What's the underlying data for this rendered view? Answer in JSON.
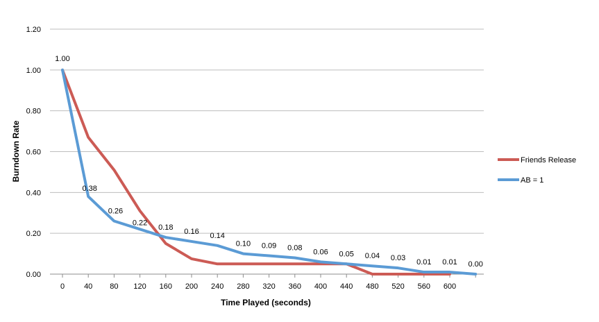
{
  "chart_data": {
    "type": "line",
    "title": "",
    "xlabel": "Time Played (seconds)",
    "ylabel": "Burndown Rate",
    "ylim": [
      0,
      1.2
    ],
    "yticks": [
      "0.00",
      "0.20",
      "0.40",
      "0.60",
      "0.80",
      "1.00",
      "1.20"
    ],
    "categories": [
      "0",
      "40",
      "80",
      "120",
      "160",
      "200",
      "240",
      "280",
      "320",
      "360",
      "400",
      "440",
      "480",
      "520",
      "560",
      "600",
      ""
    ],
    "grid": true,
    "legend_position": "right",
    "series": [
      {
        "name": "Friends Release",
        "color": "#cc5b55",
        "values": [
          1.0,
          0.67,
          0.51,
          0.31,
          0.15,
          0.075,
          0.05,
          0.05,
          0.05,
          0.05,
          0.05,
          0.05,
          0.0,
          0.0,
          0.0,
          0.0,
          null
        ],
        "data_labels": null
      },
      {
        "name": "AB = 1",
        "color": "#5b9bd5",
        "values": [
          1.0,
          0.38,
          0.26,
          0.22,
          0.18,
          0.16,
          0.14,
          0.1,
          0.09,
          0.08,
          0.06,
          0.05,
          0.04,
          0.03,
          0.01,
          0.01,
          0.0
        ],
        "data_labels": [
          "1.00",
          "0.38",
          "0.26",
          "0.22",
          "0.18",
          "0.16",
          "0.14",
          "0.10",
          "0.09",
          "0.08",
          "0.06",
          "0.05",
          "0.04",
          "0.03",
          "0.01",
          "0.01",
          "0.00"
        ]
      }
    ]
  }
}
